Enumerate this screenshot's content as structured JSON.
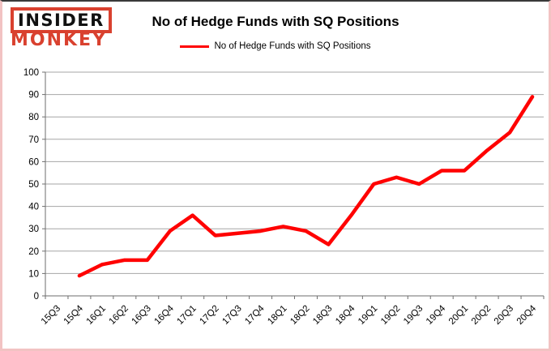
{
  "branding": {
    "logo_line1": "INSIDER",
    "logo_line2": "MONKEY",
    "brand_color": "#d9412f"
  },
  "header": {
    "title": "No of Hedge Funds with SQ Positions"
  },
  "legend": {
    "label": "No of Hedge Funds with SQ Positions",
    "line_color": "#ff0000"
  },
  "chart_data": {
    "type": "line",
    "title": "No of Hedge Funds with SQ Positions",
    "categories": [
      "15Q3",
      "15Q4",
      "16Q1",
      "16Q2",
      "16Q3",
      "16Q4",
      "17Q1",
      "17Q2",
      "17Q3",
      "17Q4",
      "18Q1",
      "18Q2",
      "18Q3",
      "18Q4",
      "19Q1",
      "19Q2",
      "19Q3",
      "19Q4",
      "20Q1",
      "20Q2",
      "20Q3",
      "20Q4"
    ],
    "series": [
      {
        "name": "No of Hedge Funds with SQ Positions",
        "color": "#ff0000",
        "values": [
          null,
          9,
          14,
          16,
          16,
          29,
          36,
          27,
          28,
          29,
          31,
          29,
          23,
          36,
          50,
          53,
          50,
          56,
          56,
          65,
          73,
          89
        ]
      }
    ],
    "xlabel": "",
    "ylabel": "",
    "ylim": [
      0,
      100
    ],
    "ytick_interval": 10,
    "yticks": [
      0,
      10,
      20,
      30,
      40,
      50,
      60,
      70,
      80,
      90,
      100
    ],
    "grid": "horizontal",
    "legend_position": "top-center",
    "grid_color": "#a6a6a6",
    "axis_color": "#6e6e6e"
  }
}
